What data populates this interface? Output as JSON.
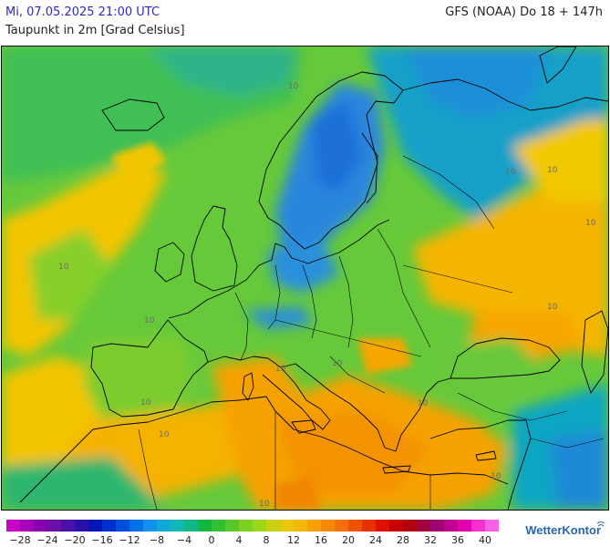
{
  "header": {
    "datetime": "Mi, 07.05.2025 21:00 UTC",
    "model_run": "GFS (NOAA) Do 18 + 147h",
    "parameter": "Taupunkt in 2m [Grad Celsius]"
  },
  "map": {
    "contour_labels": [
      "10",
      "10",
      "10",
      "10",
      "10",
      "10",
      "10",
      "10",
      "10",
      "10",
      "10",
      "10",
      "10",
      "10"
    ]
  },
  "legend": {
    "ticks": [
      "−28",
      "−24",
      "−20",
      "−16",
      "−12",
      "−8",
      "−4",
      "0",
      "4",
      "8",
      "12",
      "16",
      "20",
      "24",
      "28",
      "32",
      "36",
      "40"
    ],
    "colors": [
      "#c800c8",
      "#a800b8",
      "#8a00b0",
      "#6a10a8",
      "#4a10a8",
      "#2a10a8",
      "#0018b8",
      "#0030d0",
      "#0050e0",
      "#0070e8",
      "#1090f0",
      "#10a8d8",
      "#10b8b8",
      "#10b888",
      "#10b840",
      "#30c030",
      "#58c828",
      "#7cd020",
      "#98d818",
      "#c8d010",
      "#e8c800",
      "#f4b800",
      "#f8a000",
      "#f88800",
      "#f87000",
      "#f05000",
      "#e83000",
      "#e01000",
      "#c80000",
      "#b00010",
      "#a00040",
      "#a00070",
      "#c00090",
      "#e000b0",
      "#f830d0",
      "#ff60e8"
    ]
  },
  "brand": {
    "name": "WetterKontor"
  }
}
